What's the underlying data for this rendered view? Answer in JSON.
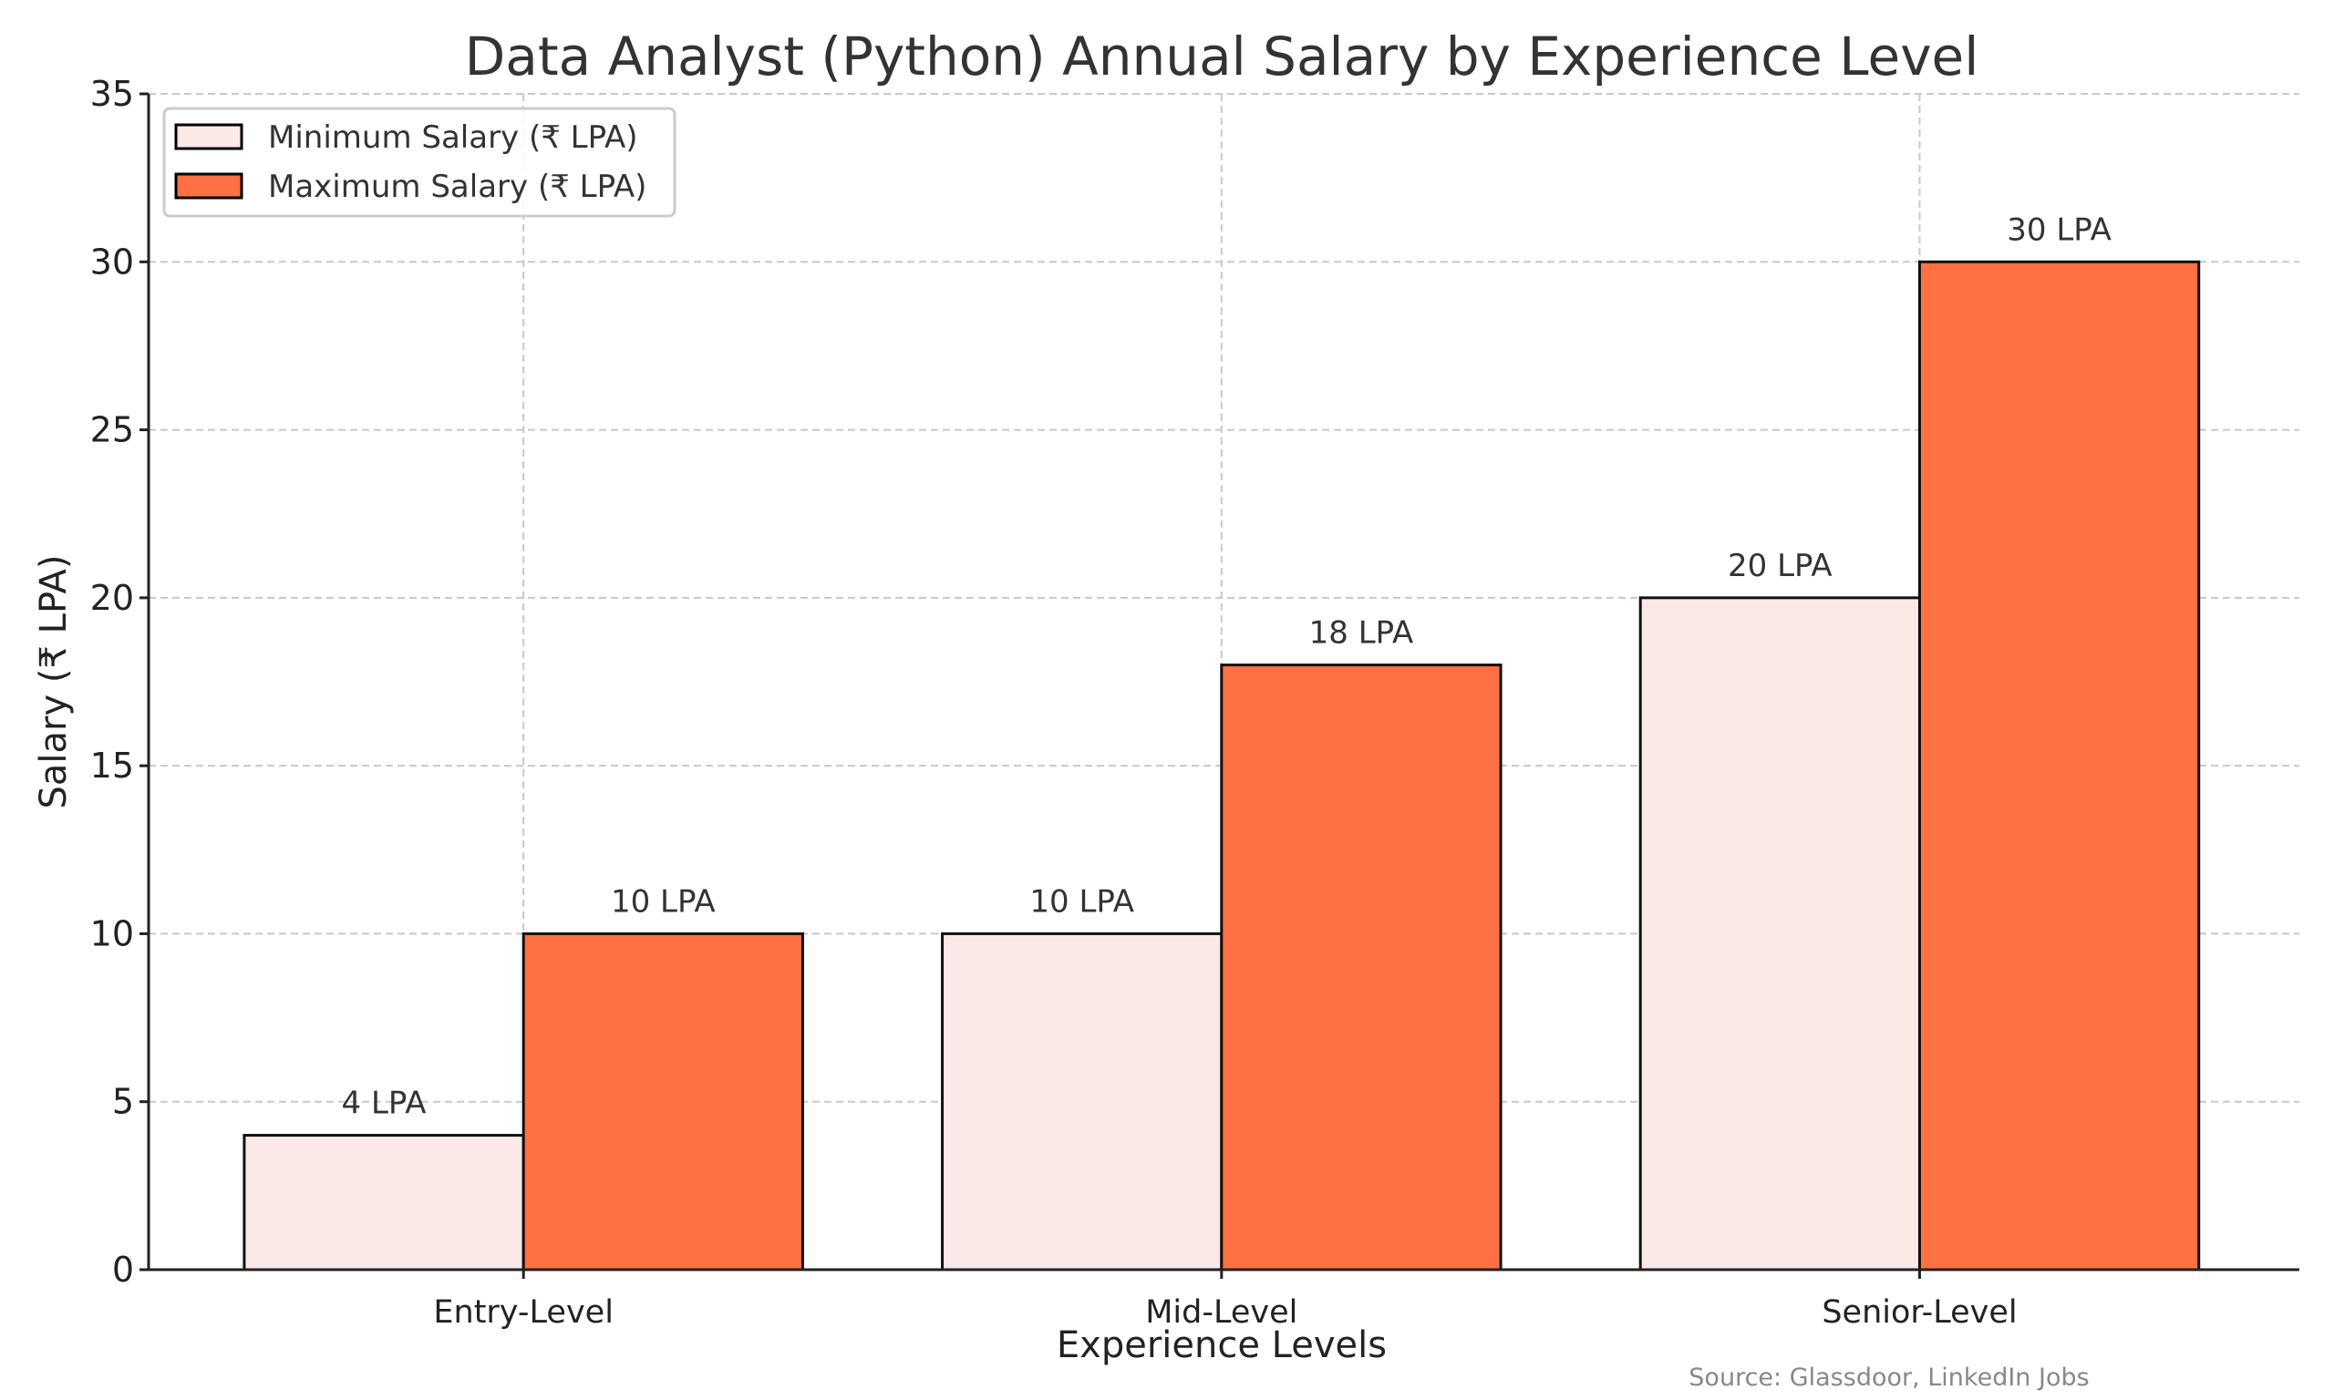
{
  "chart_data": {
    "type": "bar",
    "title": "Data Analyst (Python) Annual Salary by Experience Level",
    "xlabel": "Experience Levels",
    "ylabel": "Salary (₹ LPA)",
    "categories": [
      "Entry-Level",
      "Mid-Level",
      "Senior-Level"
    ],
    "series": [
      {
        "name": "Minimum Salary (₹ LPA)",
        "values": [
          4,
          10,
          20
        ],
        "labels": [
          "4 LPA",
          "10 LPA",
          "20 LPA"
        ],
        "color": "#FBE9E7"
      },
      {
        "name": "Maximum Salary (₹ LPA)",
        "values": [
          10,
          18,
          30
        ],
        "labels": [
          "10 LPA",
          "18 LPA",
          "30 LPA"
        ],
        "color": "#FF7043"
      }
    ],
    "ylim": [
      0,
      35
    ],
    "yticks": [
      "0",
      "5",
      "10",
      "15",
      "20",
      "25",
      "30",
      "35"
    ],
    "grid": true,
    "legend_position": "top-left",
    "source": "Source: Glassdoor, LinkedIn Jobs"
  }
}
